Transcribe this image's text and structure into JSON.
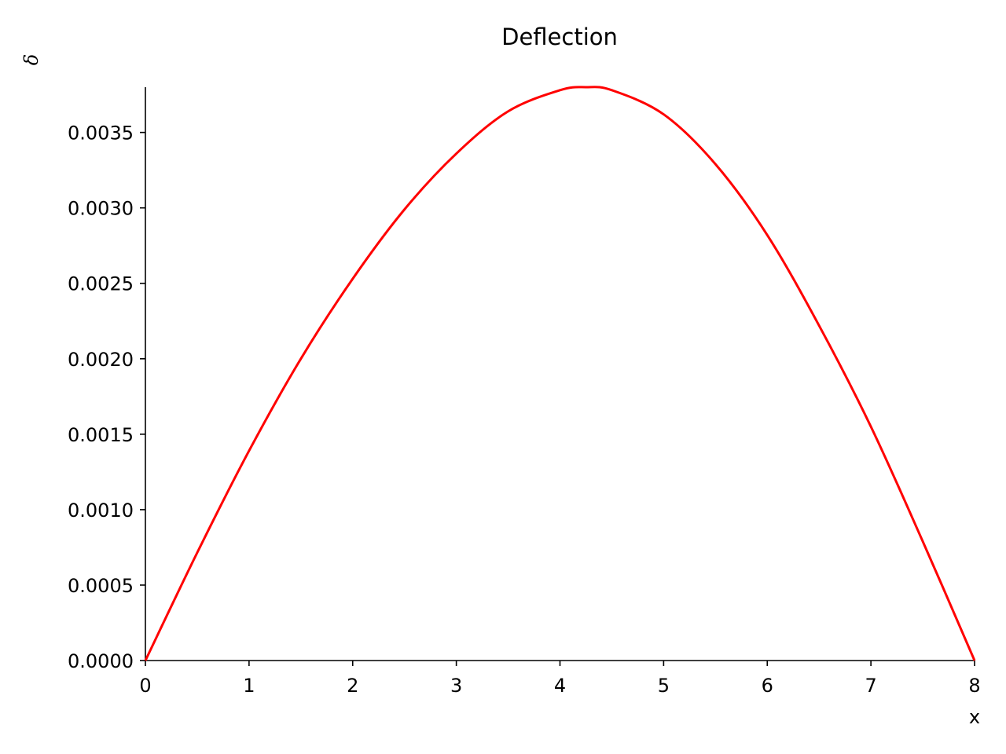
{
  "chart_data": {
    "type": "line",
    "title": "Deflection",
    "xlabel": "x",
    "ylabel": "δ",
    "xlim": [
      0,
      8
    ],
    "ylim": [
      0,
      0.0038
    ],
    "x_ticks": [
      0,
      1,
      2,
      3,
      4,
      5,
      6,
      7,
      8
    ],
    "x_tick_labels": [
      "0",
      "1",
      "2",
      "3",
      "4",
      "5",
      "6",
      "7",
      "8"
    ],
    "y_ticks": [
      0,
      0.0005,
      0.001,
      0.0015,
      0.002,
      0.0025,
      0.003,
      0.0035
    ],
    "y_tick_labels": [
      "0.0000",
      "0.0005",
      "0.0010",
      "0.0015",
      "0.0020",
      "0.0025",
      "0.0030",
      "0.0035"
    ],
    "grid": false,
    "series": [
      {
        "color": "#ff0000",
        "x": [
          0,
          0.5,
          1.0,
          1.5,
          2.0,
          2.5,
          3.0,
          3.5,
          4.0,
          4.25,
          4.5,
          5.0,
          5.5,
          6.0,
          6.5,
          7.0,
          7.5,
          8.0
        ],
        "y": [
          0,
          0.000715,
          0.00139,
          0.002,
          0.00253,
          0.00299,
          0.00336,
          0.00364,
          0.00378,
          0.0038,
          0.00378,
          0.00362,
          0.00329,
          0.00282,
          0.00222,
          0.00155,
          0.00079,
          0
        ]
      }
    ]
  }
}
